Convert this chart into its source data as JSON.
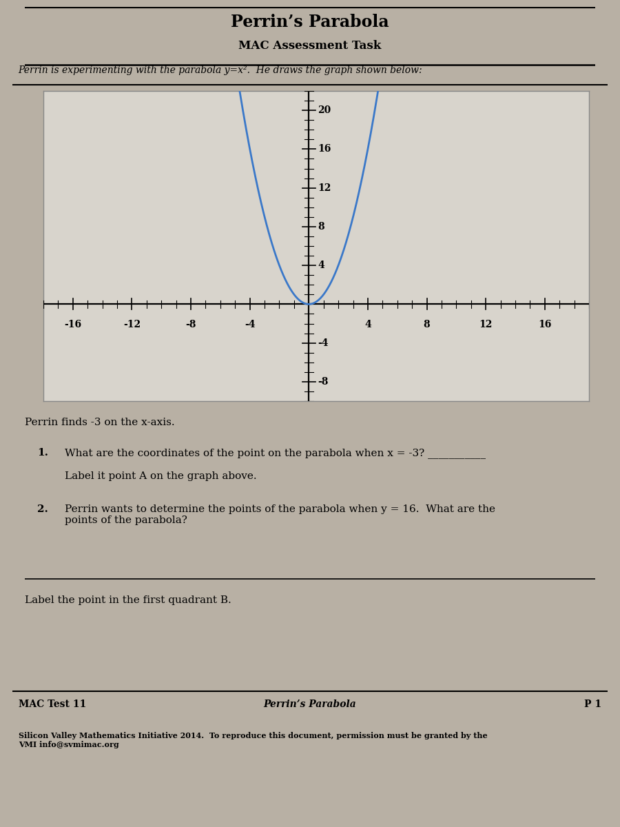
{
  "title": "Perrin’s Parabola",
  "subtitle": "MAC Assessment Task",
  "intro_text": "Perrin is experimenting with the parabola y=x².  He draws the graph shown below:",
  "graph_xlim": [
    -18,
    19
  ],
  "graph_ylim": [
    -10,
    22
  ],
  "x_ticks": [
    -16,
    -12,
    -8,
    -4,
    4,
    8,
    12,
    16
  ],
  "y_ticks": [
    -8,
    -4,
    4,
    8,
    12,
    16,
    20
  ],
  "parabola_color": "#3a78c9",
  "parabola_linewidth": 2.0,
  "page_bg_color": "#b8b0a4",
  "plot_bg_color": "#d8d4cc",
  "q1_text": "Perrin finds -3 on the x-axis.",
  "q2_text": "What are the coordinates of the point on the parabola when x = -3? ___________",
  "q2_subtext": "Label it point A on the graph above.",
  "q3_text": "Perrin wants to determine the points of the parabola when y = 16.  What are the\npoints of the parabola?",
  "q4_text": "Label the point in the first quadrant B.",
  "footer_left": "MAC Test 11",
  "footer_center": "Perrin’s Parabola",
  "footer_right": "P 1",
  "footer_small": "Silicon Valley Mathematics Initiative 2014.  To reproduce this document, permission must be granted by the\nVMI info@svmimac.org"
}
